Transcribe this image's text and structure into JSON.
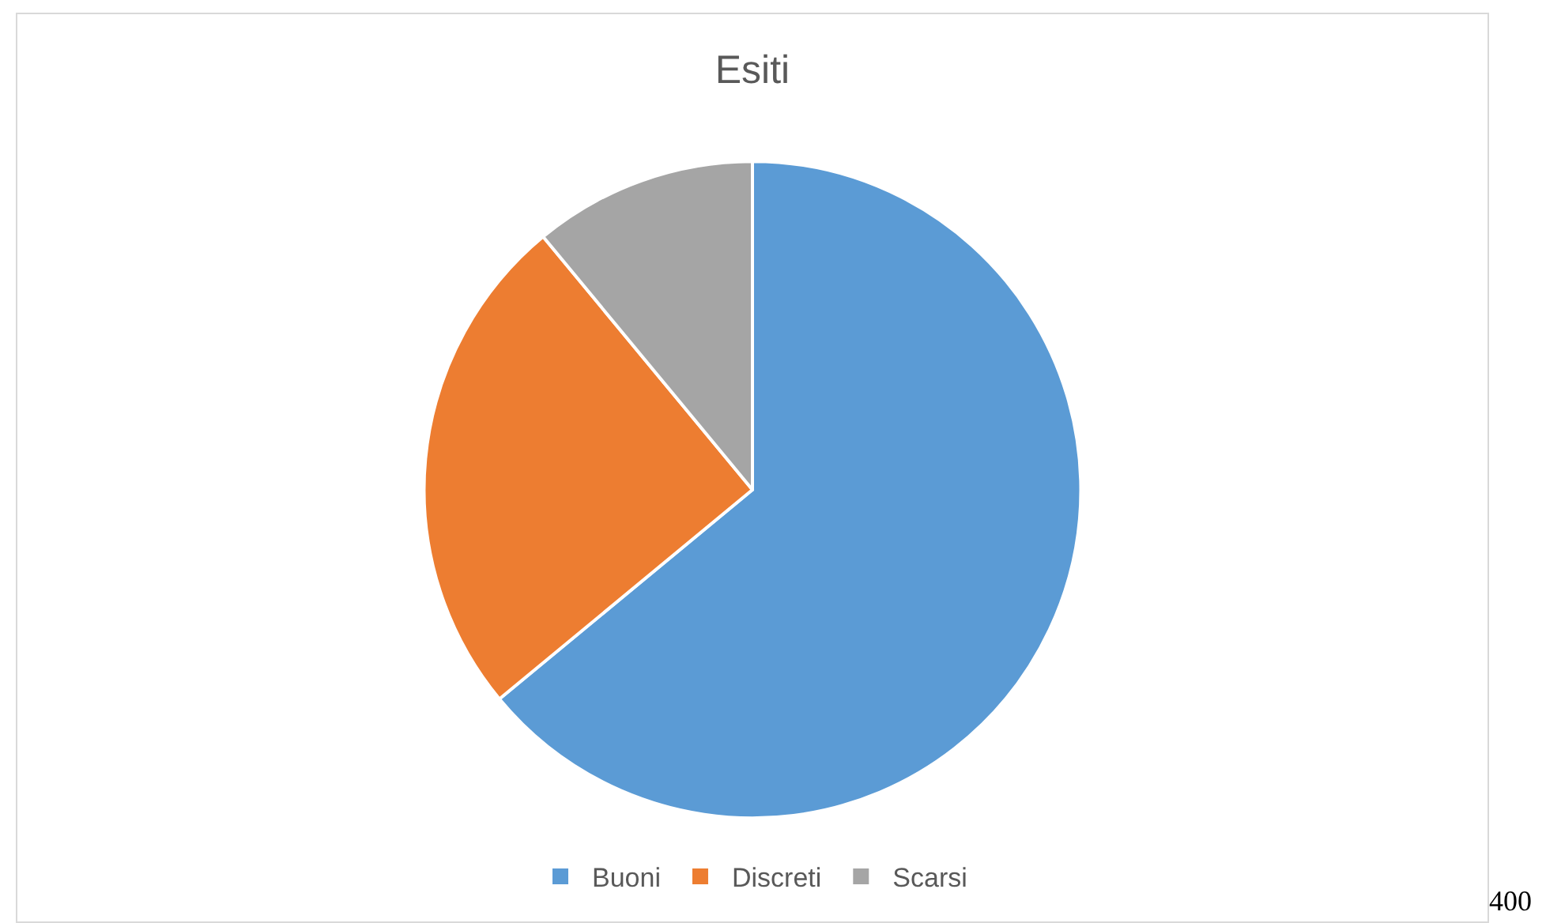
{
  "chart_data": {
    "type": "pie",
    "title": "Esiti",
    "categories": [
      "Buoni",
      "Discreti",
      "Scarsi"
    ],
    "values": [
      64,
      25,
      11
    ],
    "colors": [
      "#5b9bd5",
      "#ed7d31",
      "#a5a5a5"
    ],
    "legend": "bottom",
    "annotations": [
      "400"
    ]
  }
}
